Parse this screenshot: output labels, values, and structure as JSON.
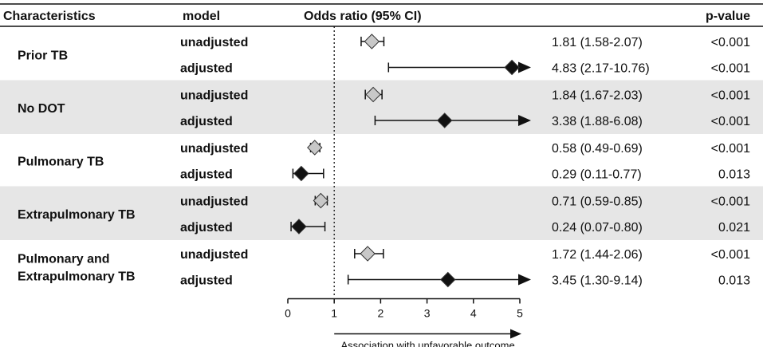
{
  "headers": {
    "characteristics": "Characteristics",
    "model": "model",
    "or": "Odds ratio (95% CI)",
    "p": "p-value"
  },
  "groups": [
    {
      "name": [
        "Prior TB"
      ],
      "shaded": false
    },
    {
      "name": [
        "No DOT"
      ],
      "shaded": true
    },
    {
      "name": [
        "Pulmonary TB"
      ],
      "shaded": false
    },
    {
      "name": [
        "Extrapulmonary TB"
      ],
      "shaded": true
    },
    {
      "name": [
        "Pulmonary and",
        "Extrapulmonary TB"
      ],
      "shaded": false
    }
  ],
  "colors": {
    "unadjusted": "#c8c8c8",
    "adjusted": "#111111",
    "shading": "#e6e6e6",
    "line": "#111111"
  },
  "chart_data": {
    "type": "forest",
    "xlim": [
      0,
      5
    ],
    "ticks": [
      "0",
      "1",
      "2",
      "3",
      "4",
      "5"
    ],
    "reference_line": 1,
    "axis_note": "Association with unfavorable outcome",
    "rows": [
      {
        "group": 0,
        "model": "unadjusted",
        "or": 1.81,
        "lo": 1.58,
        "hi": 2.07,
        "label": "1.81 (1.58-2.07)",
        "p": "<0.001",
        "arrow": false
      },
      {
        "group": 0,
        "model": "adjusted",
        "or": 4.83,
        "lo": 2.17,
        "hi": 10.76,
        "label": "4.83 (2.17-10.76)",
        "p": "<0.001",
        "arrow": true
      },
      {
        "group": 1,
        "model": "unadjusted",
        "or": 1.84,
        "lo": 1.67,
        "hi": 2.03,
        "label": "1.84 (1.67-2.03)",
        "p": "<0.001",
        "arrow": false
      },
      {
        "group": 1,
        "model": "adjusted",
        "or": 3.38,
        "lo": 1.88,
        "hi": 6.08,
        "label": "3.38 (1.88-6.08)",
        "p": "<0.001",
        "arrow": true
      },
      {
        "group": 2,
        "model": "unadjusted",
        "or": 0.58,
        "lo": 0.49,
        "hi": 0.69,
        "label": "0.58 (0.49-0.69)",
        "p": "<0.001",
        "arrow": false
      },
      {
        "group": 2,
        "model": "adjusted",
        "or": 0.29,
        "lo": 0.11,
        "hi": 0.77,
        "label": "0.29 (0.11-0.77)",
        "p": "0.013",
        "arrow": false
      },
      {
        "group": 3,
        "model": "unadjusted",
        "or": 0.71,
        "lo": 0.59,
        "hi": 0.85,
        "label": "0.71 (0.59-0.85)",
        "p": "<0.001",
        "arrow": false
      },
      {
        "group": 3,
        "model": "adjusted",
        "or": 0.24,
        "lo": 0.07,
        "hi": 0.8,
        "label": "0.24 (0.07-0.80)",
        "p": "0.021",
        "arrow": false
      },
      {
        "group": 4,
        "model": "unadjusted",
        "or": 1.72,
        "lo": 1.44,
        "hi": 2.06,
        "label": "1.72 (1.44-2.06)",
        "p": "<0.001",
        "arrow": false
      },
      {
        "group": 4,
        "model": "adjusted",
        "or": 3.45,
        "lo": 1.3,
        "hi": 9.14,
        "label": "3.45 (1.30-9.14)",
        "p": "0.013",
        "arrow": true
      }
    ]
  }
}
